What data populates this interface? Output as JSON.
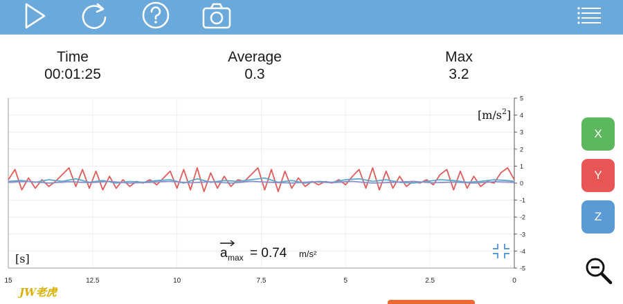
{
  "toolbar": {
    "items": [
      "play-icon",
      "refresh-icon",
      "help-icon",
      "camera-icon",
      "menu-icon"
    ],
    "color": "#6aa9da"
  },
  "stats": {
    "time_label": "Time",
    "time_value": "00:01:25",
    "avg_label": "Average",
    "avg_value": "0.3",
    "max_label": "Max",
    "max_value": "3.2"
  },
  "chart_data": {
    "type": "line",
    "x_unit": "[s]",
    "y_unit_base": "[m/s",
    "y_unit_exp": "2",
    "y_unit_end": "]",
    "xlim": [
      15,
      0
    ],
    "ylim": [
      -5,
      5
    ],
    "x_ticks": [
      "15",
      "12.5",
      "10",
      "7.5",
      "5",
      "2.5",
      "0"
    ],
    "y_ticks": [
      "5",
      "4",
      "3",
      "2",
      "1",
      "0",
      "-1",
      "-2",
      "-3",
      "-4",
      "-5"
    ],
    "grid": true,
    "annotation": {
      "symbol": "a",
      "subscript": "max",
      "equals": "= 0.74",
      "unit": "m/s²"
    },
    "series": [
      {
        "color": "#e05a5a",
        "x": [
          15.0,
          14.8,
          14.6,
          14.4,
          14.2,
          14.0,
          13.8,
          13.6,
          13.4,
          13.2,
          13.0,
          12.8,
          12.6,
          12.4,
          12.2,
          12.0,
          11.8,
          11.6,
          11.4,
          11.2,
          11.0,
          10.8,
          10.6,
          10.4,
          10.2,
          10.0,
          9.8,
          9.6,
          9.4,
          9.2,
          9.0,
          8.8,
          8.6,
          8.4,
          8.2,
          8.0,
          7.8,
          7.6,
          7.4,
          7.2,
          7.0,
          6.8,
          6.6,
          6.4,
          6.2,
          6.0,
          5.8,
          5.6,
          5.4,
          5.2,
          5.0,
          4.8,
          4.6,
          4.4,
          4.2,
          4.0,
          3.8,
          3.6,
          3.4,
          3.2,
          3.0,
          2.8,
          2.6,
          2.4,
          2.2,
          2.0,
          1.8,
          1.6,
          1.4,
          1.2,
          1.0,
          0.8,
          0.6,
          0.4,
          0.2,
          0.0
        ],
        "y": [
          0.2,
          0.8,
          -0.4,
          0.3,
          -0.3,
          0.2,
          -0.2,
          0.1,
          0.5,
          0.9,
          -0.2,
          0.8,
          -0.3,
          0.7,
          -0.4,
          0.4,
          -0.3,
          0.2,
          -0.2,
          0.1,
          0.0,
          0.2,
          -0.1,
          0.3,
          0.7,
          -0.3,
          0.8,
          -0.4,
          0.9,
          -0.5,
          0.6,
          -0.3,
          0.4,
          -0.2,
          0.2,
          0.1,
          0.5,
          0.9,
          -0.4,
          0.8,
          -0.5,
          0.7,
          -0.3,
          0.3,
          -0.2,
          0.1,
          -0.1,
          0.1,
          0.0,
          0.2,
          -0.1,
          0.4,
          0.8,
          -0.3,
          0.9,
          -0.4,
          0.7,
          -0.3,
          0.4,
          -0.2,
          0.1,
          0.0,
          0.2,
          -0.1,
          0.5,
          0.8,
          -0.4,
          0.7,
          -0.3,
          0.4,
          -0.2,
          0.1,
          0.0,
          0.6,
          0.9,
          0.2
        ]
      },
      {
        "color": "#5ca8c8",
        "x": [
          15.0,
          14.6,
          14.2,
          13.8,
          13.4,
          13.0,
          12.6,
          12.2,
          11.8,
          11.4,
          11.0,
          10.6,
          10.2,
          9.8,
          9.4,
          9.0,
          8.6,
          8.2,
          7.8,
          7.4,
          7.0,
          6.6,
          6.2,
          5.8,
          5.4,
          5.0,
          4.6,
          4.2,
          3.8,
          3.4,
          3.0,
          2.6,
          2.2,
          1.8,
          1.4,
          1.0,
          0.6,
          0.2,
          0.0
        ],
        "y": [
          0.1,
          0.15,
          0.05,
          0.2,
          0.1,
          0.25,
          0.05,
          0.15,
          0.0,
          0.1,
          0.05,
          0.15,
          0.2,
          0.0,
          0.25,
          0.05,
          0.15,
          0.1,
          0.2,
          0.3,
          0.05,
          0.15,
          0.0,
          0.1,
          0.05,
          0.2,
          0.25,
          0.1,
          0.2,
          0.05,
          0.0,
          0.1,
          0.2,
          0.15,
          0.05,
          0.1,
          0.2,
          0.15,
          0.1
        ]
      },
      {
        "color": "#8a8fc8",
        "x": [
          15.0,
          14.4,
          13.8,
          13.2,
          12.6,
          12.0,
          11.4,
          10.8,
          10.2,
          9.6,
          9.0,
          8.4,
          7.8,
          7.2,
          6.6,
          6.0,
          5.4,
          4.8,
          4.2,
          3.6,
          3.0,
          2.4,
          1.8,
          1.2,
          0.6,
          0.0
        ],
        "y": [
          0.05,
          0.1,
          0.0,
          0.08,
          0.03,
          0.1,
          0.0,
          0.05,
          0.1,
          0.02,
          0.08,
          0.0,
          0.1,
          0.05,
          0.0,
          0.08,
          0.03,
          0.1,
          0.0,
          0.05,
          0.1,
          0.02,
          0.06,
          0.0,
          0.08,
          0.05
        ]
      }
    ]
  },
  "axes_buttons": {
    "x_label": "X",
    "x_color": "#5cb85c",
    "y_label": "Y",
    "y_color": "#e85555",
    "z_label": "Z",
    "z_color": "#5b9bd5"
  },
  "watermark": "JW老虎"
}
